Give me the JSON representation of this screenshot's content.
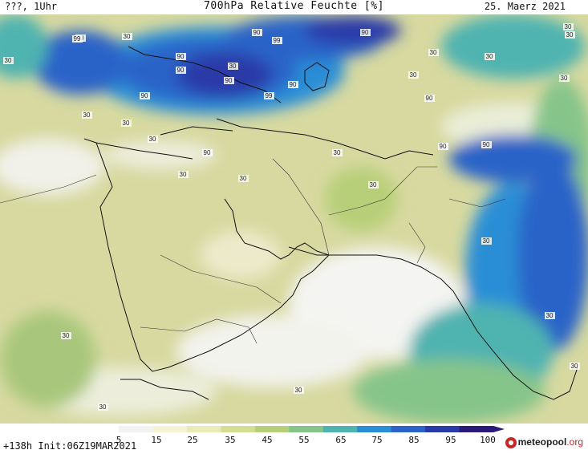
{
  "header": {
    "left": "???, 1Uhr",
    "title": "700hPa Relative Feuchte [%]",
    "date": "25. Maerz 2021"
  },
  "footer": {
    "init": "+138h Init:06Z19MAR2021",
    "logo_main": "meteopool",
    "logo_suffix": ".org"
  },
  "colorbar": {
    "labels": [
      "5",
      "15",
      "25",
      "35",
      "45",
      "55",
      "65",
      "75",
      "85",
      "95",
      "100"
    ],
    "colors": [
      "#f2f2f2",
      "#f6f3d4",
      "#e9ecb6",
      "#d4de92",
      "#b7cf78",
      "#86c58a",
      "#4fb3b0",
      "#2a8ed6",
      "#2c63c8",
      "#2a3aa8",
      "#2a1a7a"
    ]
  },
  "contour_labels": [
    "30",
    "90",
    "99",
    "30",
    "90",
    "99",
    "90",
    "30",
    "30",
    "30",
    "30",
    "90",
    "90",
    "90",
    "30",
    "90",
    "90",
    "90",
    "99",
    "90",
    "30",
    "90",
    "30",
    "30",
    "30",
    "30",
    "30",
    "30",
    "90",
    "30",
    "30",
    "30",
    "30",
    "30",
    "30",
    "30",
    "30"
  ]
}
